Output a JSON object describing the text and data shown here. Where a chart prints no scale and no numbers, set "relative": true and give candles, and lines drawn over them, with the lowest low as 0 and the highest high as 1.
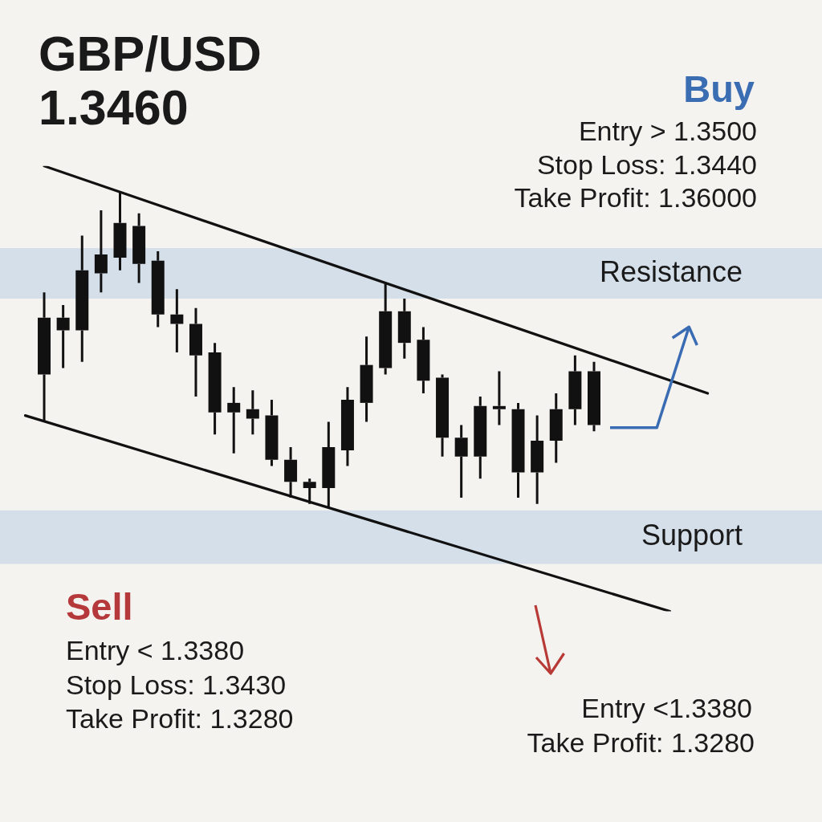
{
  "chart_data": {
    "type": "candlestick",
    "title": "GBP/USD",
    "subtitle": "1.3460",
    "relative": true,
    "color": "#111111",
    "categories": [
      null,
      null,
      null,
      null,
      null,
      null,
      null,
      null,
      null,
      null,
      null,
      null,
      null,
      null,
      null,
      null,
      null,
      null,
      null,
      null,
      null,
      null,
      null,
      null,
      null,
      null,
      null,
      null,
      null,
      null,
      null,
      null,
      null,
      null,
      null,
      null,
      null
    ],
    "ohlc": [
      null,
      [
        0.6,
        0.68,
        0.27,
        0.42
      ],
      [
        0.6,
        0.64,
        0.44,
        0.56
      ],
      [
        0.75,
        0.86,
        0.46,
        0.56
      ],
      [
        0.8,
        0.94,
        0.68,
        0.74
      ],
      [
        0.9,
        1,
        0.75,
        0.79
      ],
      [
        0.89,
        0.93,
        0.71,
        0.77
      ],
      [
        0.78,
        0.81,
        0.57,
        0.61
      ],
      [
        0.61,
        0.69,
        0.49,
        0.58
      ],
      [
        0.58,
        0.63,
        0.35,
        0.48
      ],
      [
        0.49,
        0.52,
        0.23,
        0.3
      ],
      [
        0.33,
        0.38,
        0.17,
        0.3
      ],
      [
        0.31,
        0.37,
        0.23,
        0.28
      ],
      [
        0.29,
        0.34,
        0.13,
        0.15
      ],
      [
        0.15,
        0.19,
        0.03,
        0.08
      ],
      [
        0.08,
        0.09,
        0.01,
        0.06
      ],
      [
        0.19,
        0.27,
        0,
        0.06
      ],
      [
        0.34,
        0.38,
        0.13,
        0.18
      ],
      [
        0.45,
        0.54,
        0.27,
        0.33
      ],
      [
        0.62,
        0.71,
        0.42,
        0.44
      ],
      [
        0.62,
        0.66,
        0.47,
        0.52
      ],
      [
        0.53,
        0.57,
        0.36,
        0.4
      ],
      [
        0.41,
        0.42,
        0.16,
        0.22
      ],
      [
        0.22,
        0.26,
        0.03,
        0.16
      ],
      [
        0.32,
        0.35,
        0.09,
        0.16
      ],
      [
        0.32,
        0.43,
        0.26,
        0.31
      ],
      [
        0.31,
        0.33,
        0.03,
        0.11
      ],
      [
        0.21,
        0.29,
        0.01,
        0.11
      ],
      [
        0.31,
        0.36,
        0.14,
        0.21
      ],
      [
        0.43,
        0.48,
        0.26,
        0.31
      ],
      [
        0.43,
        0.46,
        0.24,
        0.26
      ],
      null,
      null,
      null,
      null,
      null,
      null
    ],
    "series": [
      {
        "type": "line",
        "color": "#111111",
        "values": [
          null,
          1.08,
          null,
          null,
          null,
          null,
          null,
          null,
          null,
          null,
          null,
          null,
          null,
          null,
          null,
          null,
          null,
          null,
          null,
          null,
          null,
          null,
          null,
          null,
          null,
          null,
          null,
          null,
          null,
          null,
          null,
          null,
          null,
          null,
          null,
          null,
          0.36
        ]
      },
      {
        "type": "line",
        "color": "#111111",
        "values": [
          0.29,
          null,
          null,
          null,
          null,
          null,
          null,
          null,
          null,
          null,
          null,
          null,
          null,
          null,
          null,
          null,
          null,
          null,
          null,
          null,
          null,
          null,
          null,
          null,
          null,
          null,
          null,
          null,
          null,
          null,
          null,
          null,
          null,
          null,
          -0.33,
          null,
          null
        ]
      }
    ],
    "bands": [
      {
        "axis": "y",
        "from": 0.66,
        "to": 0.82,
        "label": "Resistance",
        "color": "#d5dfe9"
      },
      {
        "axis": "y",
        "from": -0.18,
        "to": -0.01,
        "label": "Support",
        "color": "#d5dfe9"
      }
    ],
    "annotations": [
      "Buy",
      "Entry > 1.3500",
      "Stop Loss: 1.3440",
      "Take Profit: 1.36000",
      "Sell",
      "Entry < 1.3380",
      "Stop Loss: 1.3430",
      "Take Profit: 1.3280",
      "Entry <1.3380",
      "Take Profit: 1.3280"
    ]
  }
}
